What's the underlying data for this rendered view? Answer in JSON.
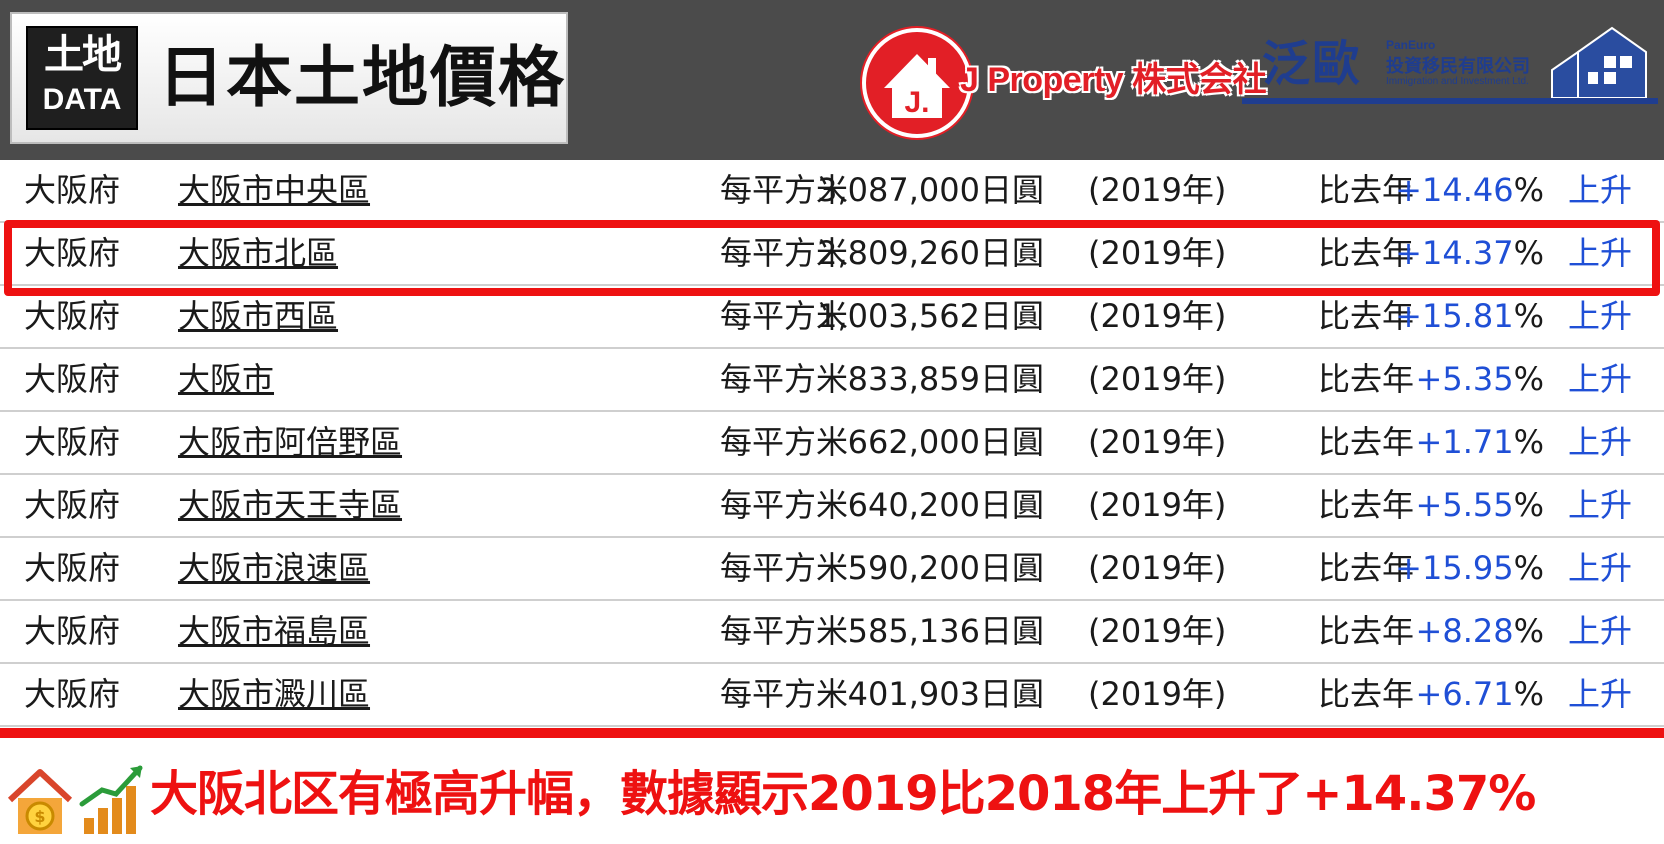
{
  "header": {
    "logo_line1": "土地",
    "logo_line2": "DATA",
    "title": "日本土地價格",
    "jproperty_mark": "J.",
    "jproperty_name": "J Property 株式会社",
    "paneuro_big": "泛歐",
    "paneuro_en": "PanEuro",
    "paneuro_cn": "投資移民有限公司",
    "paneuro_en2": "Immigration and Investment Ltd."
  },
  "rows": [
    {
      "pref": "大阪府",
      "city": "大阪市中央區",
      "unit": "每平方米",
      "price": "3,087,000日圓",
      "year": "(2019年)",
      "compare": "比去年",
      "pct": "+14.46",
      "pct_sign": "%",
      "dir": "上升"
    },
    {
      "pref": "大阪府",
      "city": "大阪市北區",
      "unit": "每平方米",
      "price": "2,809,260日圓",
      "year": "(2019年)",
      "compare": "比去年",
      "pct": "+14.37",
      "pct_sign": "%",
      "dir": "上升"
    },
    {
      "pref": "大阪府",
      "city": "大阪市西區",
      "unit": "每平方米",
      "price": "1,003,562日圓",
      "year": "(2019年)",
      "compare": "比去年",
      "pct": "+15.81",
      "pct_sign": "%",
      "dir": "上升"
    },
    {
      "pref": "大阪府",
      "city": "大阪市",
      "unit": "每平方米",
      "price": "833,859日圓",
      "year": "(2019年)",
      "compare": "比去年",
      "pct": "+5.35",
      "pct_sign": "%",
      "dir": "上升"
    },
    {
      "pref": "大阪府",
      "city": "大阪市阿倍野區",
      "unit": "每平方米",
      "price": "662,000日圓",
      "year": "(2019年)",
      "compare": "比去年",
      "pct": "+1.71",
      "pct_sign": "%",
      "dir": "上升"
    },
    {
      "pref": "大阪府",
      "city": "大阪市天王寺區",
      "unit": "每平方米",
      "price": "640,200日圓",
      "year": "(2019年)",
      "compare": "比去年",
      "pct": "+5.55",
      "pct_sign": "%",
      "dir": "上升"
    },
    {
      "pref": "大阪府",
      "city": "大阪市浪速區",
      "unit": "每平方米",
      "price": "590,200日圓",
      "year": "(2019年)",
      "compare": "比去年",
      "pct": "+15.95",
      "pct_sign": "%",
      "dir": "上升"
    },
    {
      "pref": "大阪府",
      "city": "大阪市福島區",
      "unit": "每平方米",
      "price": "585,136日圓",
      "year": "(2019年)",
      "compare": "比去年",
      "pct": "+8.28",
      "pct_sign": "%",
      "dir": "上升"
    },
    {
      "pref": "大阪府",
      "city": "大阪市澱川區",
      "unit": "每平方米",
      "price": "401,903日圓",
      "year": "(2019年)",
      "compare": "比去年",
      "pct": "+6.71",
      "pct_sign": "%",
      "dir": "上升"
    }
  ],
  "caption": "大阪北区有極高升幅，數據顯示2019比2018年上升了+14.37%",
  "colors": {
    "accent_red": "#ee1111",
    "link_blue": "#1f4fd6",
    "header_gray": "#4b4b4b"
  }
}
